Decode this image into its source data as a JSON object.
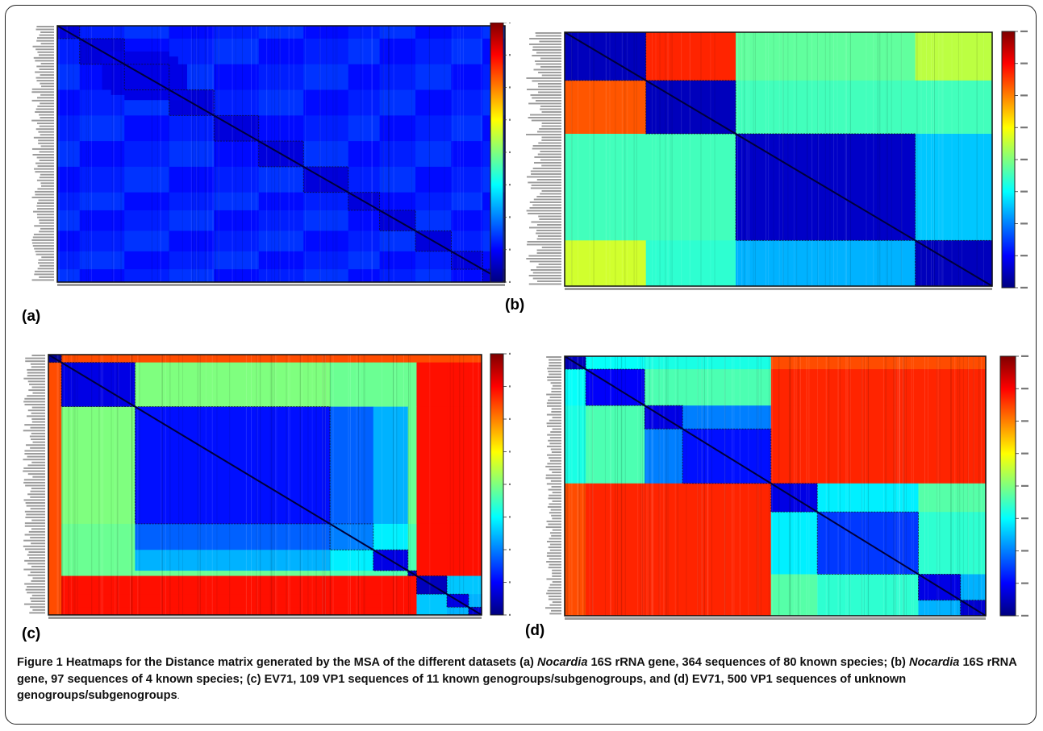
{
  "figure": {
    "panel_labels": [
      "(a)",
      "(b)",
      "(c)",
      "(d)"
    ],
    "caption": {
      "label": "Figure 1",
      "part1": " Heatmaps for the Distance matrix generated by the MSA of the different datasets (a) ",
      "genus_a": "Nocardia",
      "part2": " 16S rRNA gene, 364 sequences of 80 known species; (b) ",
      "genus_b": "Nocardia",
      "part3": " 16S rRNA gene, 97 sequences of 4 known species; (c) EV71, 109 VP1 sequences of 11 known genogroups/subgenogroups, and (d) EV71, 500 VP1 sequences of unknown genogroups/subgenogroups",
      "end": "."
    }
  },
  "colors": {
    "colormap": [
      "#00007f",
      "#0000ff",
      "#007fff",
      "#00ffff",
      "#7fff7f",
      "#ffff00",
      "#ff7f00",
      "#ff0000",
      "#7f0000"
    ]
  },
  "chart_data": [
    {
      "type": "heatmap",
      "panel": "(a)",
      "n_sequences": 364,
      "block_boundaries": [
        0.0,
        0.05,
        0.15,
        0.25,
        0.35,
        0.45,
        0.55,
        0.65,
        0.72,
        0.8,
        0.88,
        0.95,
        1.0
      ],
      "blocks": [
        [
          0.15,
          0.32,
          0.14
        ],
        [
          0.12,
          0.16,
          0.15
        ],
        [
          0.1,
          0.13,
          0.15
        ],
        [
          0.15,
          0.2,
          0.12
        ]
      ],
      "colorbar": true,
      "tick_labels": []
    },
    {
      "type": "heatmap",
      "panel": "(b)",
      "n_sequences": 97,
      "block_boundaries": [
        0.0,
        0.19,
        0.4,
        0.82,
        1.0
      ],
      "block_values": [
        [
          0.06,
          0.84,
          0.47,
          0.56
        ],
        [
          0.79,
          0.06,
          0.44,
          0.44
        ],
        [
          0.44,
          0.44,
          0.07,
          0.32
        ],
        [
          0.58,
          0.42,
          0.3,
          0.06
        ]
      ],
      "colorbar": true,
      "tick_labels": []
    },
    {
      "type": "heatmap",
      "panel": "(c)",
      "n_sequences": 109,
      "block_boundaries": [
        0.0,
        0.03,
        0.2,
        0.65,
        0.75,
        0.83,
        0.85,
        0.92,
        0.97,
        1.0
      ],
      "block_values": [
        [
          0.02,
          0.8,
          0.8,
          0.8,
          0.8,
          0.8,
          0.8,
          0.8,
          0.8
        ],
        [
          0.8,
          0.1,
          0.5,
          0.48,
          0.48,
          0.48,
          0.86,
          0.86,
          0.86
        ],
        [
          0.8,
          0.5,
          0.14,
          0.22,
          0.3,
          0.48,
          0.86,
          0.86,
          0.86
        ],
        [
          0.8,
          0.48,
          0.22,
          0.25,
          0.36,
          0.45,
          0.86,
          0.86,
          0.86
        ],
        [
          0.8,
          0.48,
          0.3,
          0.36,
          0.1,
          0.45,
          0.86,
          0.86,
          0.86
        ],
        [
          0.8,
          0.48,
          0.48,
          0.45,
          0.45,
          0.06,
          0.86,
          0.86,
          0.86
        ],
        [
          0.8,
          0.86,
          0.86,
          0.86,
          0.86,
          0.86,
          0.06,
          0.32,
          0.32
        ],
        [
          0.8,
          0.86,
          0.86,
          0.86,
          0.86,
          0.86,
          0.32,
          0.1,
          0.3
        ],
        [
          0.8,
          0.86,
          0.86,
          0.86,
          0.86,
          0.86,
          0.32,
          0.3,
          0.08
        ]
      ],
      "colorbar": true,
      "tick_labels": []
    },
    {
      "type": "heatmap",
      "panel": "(d)",
      "n_sequences": 500,
      "block_boundaries": [
        0.0,
        0.05,
        0.19,
        0.28,
        0.49,
        0.6,
        0.84,
        0.94,
        1.0
      ],
      "block_values": [
        [
          0.06,
          0.38,
          0.4,
          0.4,
          0.8,
          0.8,
          0.8,
          0.8
        ],
        [
          0.38,
          0.12,
          0.45,
          0.45,
          0.84,
          0.84,
          0.84,
          0.84
        ],
        [
          0.4,
          0.45,
          0.1,
          0.25,
          0.84,
          0.84,
          0.84,
          0.84
        ],
        [
          0.4,
          0.45,
          0.25,
          0.14,
          0.84,
          0.84,
          0.84,
          0.84
        ],
        [
          0.8,
          0.84,
          0.84,
          0.84,
          0.1,
          0.36,
          0.46,
          0.46
        ],
        [
          0.8,
          0.84,
          0.84,
          0.84,
          0.36,
          0.18,
          0.42,
          0.42
        ],
        [
          0.8,
          0.84,
          0.84,
          0.84,
          0.46,
          0.42,
          0.1,
          0.3
        ],
        [
          0.8,
          0.84,
          0.84,
          0.84,
          0.46,
          0.42,
          0.3,
          0.08
        ]
      ],
      "colorbar": true,
      "tick_labels": []
    }
  ]
}
